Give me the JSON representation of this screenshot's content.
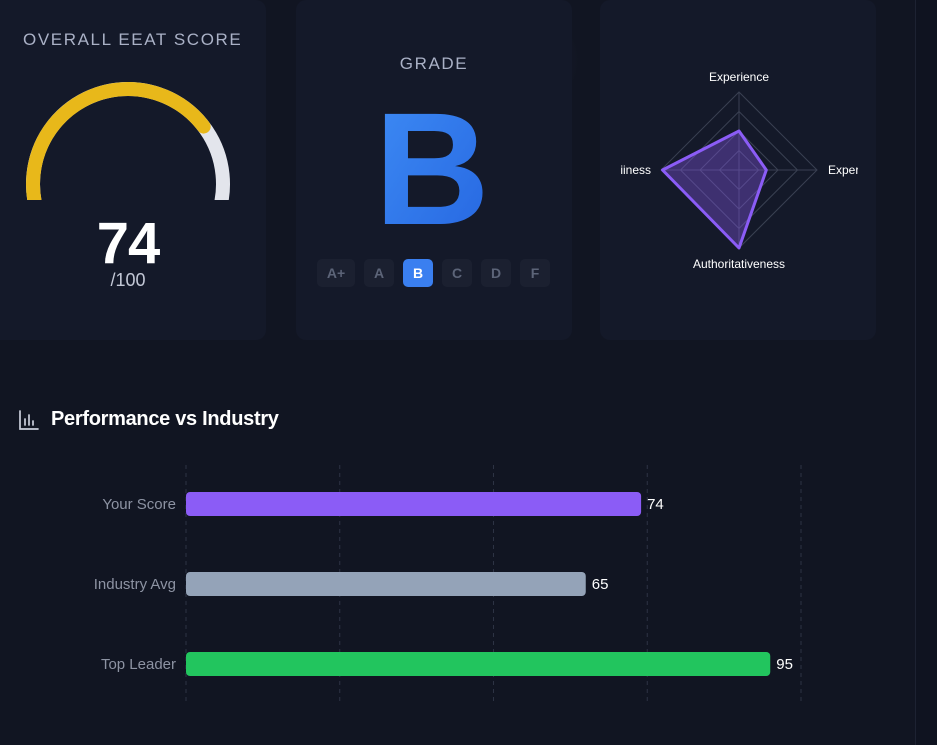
{
  "score_card": {
    "title": "OVERALL EEAT SCORE",
    "value": "74",
    "max_label": "/100",
    "score": 74,
    "max": 100,
    "gauge_color": "#e8b81a",
    "track_color": "#e3e5ec"
  },
  "grade_card": {
    "title": "GRADE",
    "letter": "B",
    "letter_gradient": [
      "#3e8cf5",
      "#2565e0"
    ],
    "options": [
      "A+",
      "A",
      "B",
      "C",
      "D",
      "F"
    ],
    "selected": "B"
  },
  "radar": {
    "axes": [
      {
        "label": "Experience",
        "value": 0.5
      },
      {
        "label": "Expertise",
        "value": 0.35
      },
      {
        "label": "Authoritativeness",
        "value": 1.0
      },
      {
        "label": "Trustworthiness",
        "value": 0.98
      }
    ],
    "visible_labels": {
      "top": "Experience",
      "right": "Exper",
      "bottom": "Authoritativeness",
      "left": "iiness"
    },
    "color": "#8b5cf6"
  },
  "performance": {
    "title": "Performance vs Industry",
    "icon": "bar-chart-icon"
  },
  "chart_data": {
    "type": "bar",
    "orientation": "horizontal",
    "categories": [
      "Your Score",
      "Industry Avg",
      "Top Leader"
    ],
    "values": [
      74,
      65,
      95
    ],
    "colors": [
      "#8b5cf6",
      "#94a3b8",
      "#22c55e"
    ],
    "xlim": [
      0,
      100
    ],
    "grid": true
  }
}
